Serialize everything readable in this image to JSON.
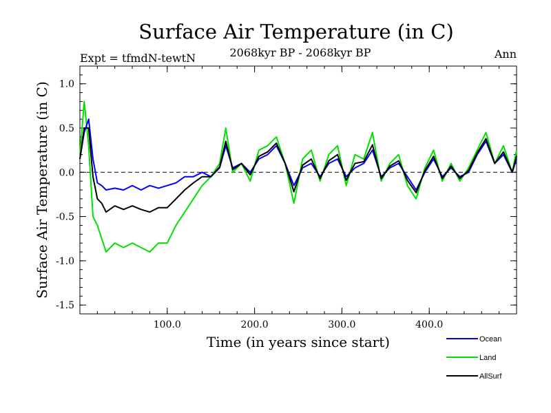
{
  "header": {
    "title": "Surface Air Temperature (in C)",
    "expt": "Expt = tfmdN-tewtN",
    "period": "2068kyr BP - 2068kyr BP",
    "season": "Ann"
  },
  "chart_data": {
    "type": "line",
    "title": "Surface Air Temperature (in C)",
    "xlabel": "Time (in years since start)",
    "ylabel": "Surface Air Temperature (in C)",
    "xlim": [
      0,
      500
    ],
    "ylim": [
      -1.6,
      1.2
    ],
    "xticks": [
      100,
      200,
      300,
      400
    ],
    "xtick_labels": [
      "100.0",
      "200.0",
      "300.0",
      "400.0"
    ],
    "yticks": [
      1.0,
      0.5,
      0.0,
      -0.5,
      -1.0,
      -1.5
    ],
    "ytick_labels": [
      "1.0",
      "0.5",
      "0.0",
      "-0.5",
      "-1.0",
      "-1.5"
    ],
    "reference_line": 0.0,
    "legend_position": "bottom-right",
    "series": [
      {
        "name": "Ocean",
        "color": "#0000ff",
        "x": [
          0,
          5,
          10,
          15,
          20,
          25,
          30,
          40,
          50,
          60,
          70,
          80,
          90,
          100,
          110,
          120,
          130,
          140,
          150,
          160,
          167,
          175,
          185,
          195,
          205,
          215,
          225,
          235,
          245,
          255,
          265,
          275,
          285,
          295,
          305,
          315,
          325,
          335,
          345,
          355,
          365,
          375,
          385,
          395,
          405,
          415,
          425,
          435,
          445,
          455,
          465,
          475,
          485,
          495,
          500
        ],
        "values": [
          0.15,
          0.45,
          0.6,
          0.15,
          -0.12,
          -0.15,
          -0.2,
          -0.18,
          -0.2,
          -0.15,
          -0.2,
          -0.15,
          -0.18,
          -0.15,
          -0.12,
          -0.05,
          -0.05,
          0.0,
          -0.05,
          0.05,
          0.3,
          0.05,
          0.1,
          0.0,
          0.15,
          0.2,
          0.3,
          0.1,
          -0.15,
          0.05,
          0.1,
          -0.05,
          0.1,
          0.15,
          -0.05,
          0.05,
          0.1,
          0.25,
          -0.05,
          0.05,
          0.1,
          -0.05,
          -0.2,
          0.0,
          0.15,
          -0.05,
          0.05,
          -0.05,
          0.0,
          0.2,
          0.35,
          0.1,
          0.2,
          0.0,
          0.15
        ]
      },
      {
        "name": "Land",
        "color": "#00e000",
        "x": [
          0,
          5,
          10,
          15,
          20,
          25,
          30,
          40,
          50,
          60,
          70,
          80,
          90,
          100,
          110,
          120,
          130,
          140,
          150,
          160,
          167,
          175,
          185,
          195,
          205,
          215,
          225,
          235,
          245,
          255,
          265,
          275,
          285,
          295,
          305,
          315,
          325,
          335,
          345,
          355,
          365,
          375,
          385,
          395,
          405,
          415,
          425,
          435,
          445,
          455,
          465,
          475,
          485,
          495,
          500
        ],
        "values": [
          0.2,
          0.8,
          0.3,
          -0.5,
          -0.6,
          -0.75,
          -0.9,
          -0.8,
          -0.85,
          -0.8,
          -0.85,
          -0.9,
          -0.8,
          -0.8,
          -0.6,
          -0.45,
          -0.3,
          -0.15,
          -0.05,
          0.1,
          0.5,
          0.0,
          0.1,
          -0.1,
          0.25,
          0.3,
          0.4,
          0.1,
          -0.35,
          0.15,
          0.25,
          -0.1,
          0.2,
          0.3,
          -0.15,
          0.2,
          0.15,
          0.45,
          -0.1,
          0.1,
          0.2,
          -0.15,
          -0.3,
          0.05,
          0.25,
          -0.1,
          0.1,
          -0.1,
          0.05,
          0.25,
          0.45,
          0.1,
          0.3,
          0.0,
          0.25
        ]
      },
      {
        "name": "AllSurf",
        "color": "#000000",
        "x": [
          0,
          5,
          10,
          15,
          20,
          25,
          30,
          40,
          50,
          60,
          70,
          80,
          90,
          100,
          110,
          120,
          130,
          140,
          150,
          160,
          167,
          175,
          185,
          195,
          205,
          215,
          225,
          235,
          245,
          255,
          265,
          275,
          285,
          295,
          305,
          315,
          325,
          335,
          345,
          355,
          365,
          375,
          385,
          395,
          405,
          415,
          425,
          435,
          445,
          455,
          465,
          475,
          485,
          495,
          500
        ],
        "values": [
          0.15,
          0.5,
          0.5,
          -0.05,
          -0.3,
          -0.35,
          -0.45,
          -0.38,
          -0.42,
          -0.38,
          -0.42,
          -0.45,
          -0.4,
          -0.4,
          -0.3,
          -0.2,
          -0.12,
          -0.05,
          -0.05,
          0.06,
          0.35,
          0.03,
          0.1,
          -0.03,
          0.18,
          0.23,
          0.33,
          0.1,
          -0.22,
          0.08,
          0.15,
          -0.07,
          0.13,
          0.2,
          -0.09,
          0.1,
          0.12,
          0.31,
          -0.07,
          0.07,
          0.13,
          -0.09,
          -0.23,
          0.02,
          0.18,
          -0.07,
          0.07,
          -0.07,
          0.02,
          0.22,
          0.38,
          0.1,
          0.23,
          0.0,
          0.18
        ]
      }
    ]
  }
}
